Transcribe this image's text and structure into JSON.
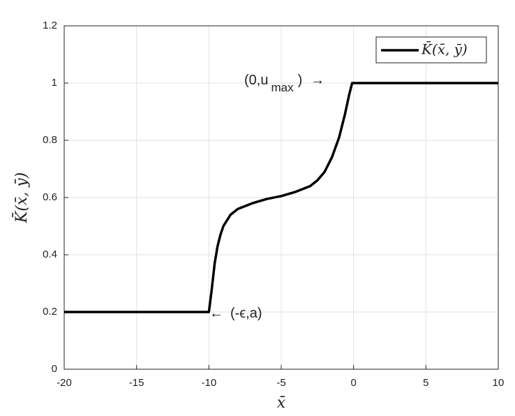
{
  "chart_data": {
    "type": "line",
    "xlabel": "x̄",
    "ylabel": "K̄(x̄, ȳ)",
    "x": [
      -20,
      -10,
      -9.8,
      -9.6,
      -9.4,
      -9.2,
      -9,
      -8.5,
      -8,
      -7,
      -6,
      -5,
      -4,
      -3,
      -2.5,
      -2,
      -1.5,
      -1,
      -0.6,
      -0.3,
      -0.1,
      0,
      10
    ],
    "series": [
      {
        "name": "K̄(x̄, ȳ)",
        "color": "#000000",
        "values": [
          0.2,
          0.2,
          0.28,
          0.37,
          0.43,
          0.47,
          0.5,
          0.54,
          0.56,
          0.58,
          0.595,
          0.605,
          0.62,
          0.64,
          0.66,
          0.69,
          0.74,
          0.81,
          0.89,
          0.96,
          1,
          1,
          1
        ]
      }
    ],
    "xlim": [
      -20,
      10
    ],
    "xticks": [
      -20,
      -15,
      -10,
      -5,
      0,
      5,
      10
    ],
    "ylim": [
      0,
      1.2
    ],
    "yticks": [
      0,
      0.2,
      0.4,
      0.6,
      0.8,
      1,
      1.2
    ],
    "grid": true,
    "legend": "upper right",
    "annotations": [
      {
        "parts": [
          "(0,u",
          "max",
          ")",
          "→"
        ]
      },
      {
        "parts": [
          "←",
          "(-ϵ,a)"
        ]
      }
    ]
  }
}
